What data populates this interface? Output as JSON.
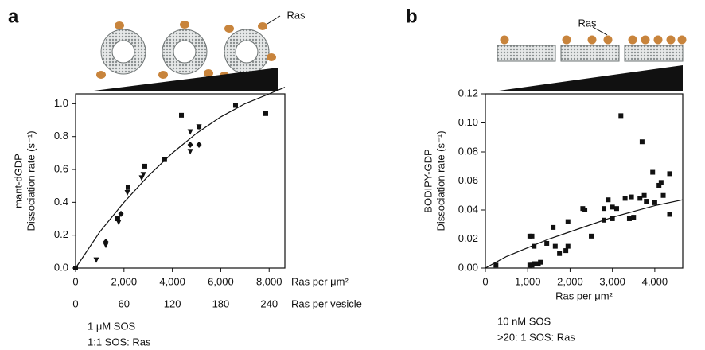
{
  "chart_data": [
    {
      "type": "scatter",
      "panel": "a",
      "annotation": "Ras",
      "ylabel": [
        "mant-dGDP",
        "Dissociation rate (s⁻¹)"
      ],
      "xlabel": "Ras per μm²",
      "x2label": "Ras per vesicle",
      "notes": [
        "1 μM SOS",
        "1:1 SOS: Ras"
      ],
      "xlim": [
        0,
        8650
      ],
      "xticks": [
        0,
        {
          "value": 2000,
          "label": "2,000"
        },
        {
          "value": 4000,
          "label": "4,000"
        },
        {
          "value": 6000,
          "label": "6,000"
        },
        {
          "value": 8000,
          "label": "8,000"
        }
      ],
      "x2lim": [
        0,
        259.5
      ],
      "x2ticks": [
        0,
        60,
        120,
        180,
        240
      ],
      "ylim": [
        0,
        1.06
      ],
      "yticks": [
        {
          "value": 0,
          "label": "0.0"
        },
        0.2,
        0.4,
        0.6,
        0.8,
        {
          "value": 1,
          "label": "1.0"
        }
      ],
      "series": [
        {
          "marker": "square",
          "color": "#111111",
          "x": [
            0,
            1740,
            2170,
            2860,
            3680,
            4375,
            5100,
            6610,
            7860
          ],
          "values": [
            0,
            0.3,
            0.49,
            0.62,
            0.66,
            0.93,
            0.86,
            0.99,
            0.94
          ]
        },
        {
          "marker": "triangle",
          "color": "#111111",
          "x": [
            855,
            1250,
            1780,
            2140,
            2730,
            2800,
            4740,
            4740,
            5100
          ],
          "values": [
            0.05,
            0.14,
            0.28,
            0.46,
            0.55,
            0.57,
            0.83,
            0.71,
            0.86
          ]
        },
        {
          "marker": "diamond",
          "color": "#111111",
          "x": [
            1250,
            1875,
            4740,
            5100
          ],
          "values": [
            0.16,
            0.33,
            0.75,
            0.75
          ]
        },
        {
          "marker": "line",
          "color": "#111111",
          "x": [
            0,
            1000,
            2000,
            3000,
            4000,
            5000,
            6000,
            7000,
            8000,
            8650
          ],
          "values": [
            0,
            0.22,
            0.4,
            0.56,
            0.7,
            0.82,
            0.92,
            1.0,
            1.06,
            1.1
          ]
        }
      ]
    },
    {
      "type": "scatter",
      "panel": "b",
      "annotation": "Ras",
      "ylabel": [
        "BODIPY-GDP",
        "Dissociation rate (s⁻¹)"
      ],
      "xlabel": "Ras per μm²",
      "notes": [
        "10 nM SOS",
        ">20: 1 SOS: Ras"
      ],
      "xlim": [
        0,
        4660
      ],
      "xticks": [
        0,
        {
          "value": 1000,
          "label": "1,000"
        },
        {
          "value": 2000,
          "label": "2,000"
        },
        {
          "value": 3000,
          "label": "3,000"
        },
        {
          "value": 4000,
          "label": "4,000"
        }
      ],
      "ylim": [
        0,
        0.12
      ],
      "yticks": [
        {
          "value": 0,
          "label": "0.00"
        },
        0.02,
        0.04,
        0.06,
        0.08,
        {
          "value": 0.1,
          "label": "0.10"
        },
        0.12
      ],
      "series": [
        {
          "marker": "square",
          "color": "#111111",
          "x": [
            250,
            1050,
            1100,
            1050,
            1100,
            1150,
            1250,
            1300,
            1150,
            1450,
            1600,
            1750,
            1650,
            1900,
            1950,
            1950,
            2300,
            2350,
            2500,
            2800,
            2800,
            2900,
            3000,
            3100,
            3000,
            3200,
            3300,
            3400,
            3450,
            3500,
            3650,
            3700,
            3750,
            3800,
            3950,
            4000,
            4100,
            4150,
            4200,
            4350,
            4350
          ],
          "values": [
            0.002,
            0.022,
            0.022,
            0.002,
            0.002,
            0.003,
            0.003,
            0.004,
            0.015,
            0.017,
            0.028,
            0.01,
            0.015,
            0.012,
            0.015,
            0.032,
            0.041,
            0.04,
            0.022,
            0.041,
            0.033,
            0.047,
            0.042,
            0.041,
            0.034,
            0.105,
            0.048,
            0.034,
            0.049,
            0.035,
            0.048,
            0.087,
            0.05,
            0.046,
            0.066,
            0.045,
            0.057,
            0.059,
            0.05,
            0.065,
            0.037
          ]
        },
        {
          "marker": "line",
          "color": "#111111",
          "x": [
            0,
            500,
            1000,
            1500,
            2000,
            2500,
            3000,
            3500,
            4000,
            4660
          ],
          "values": [
            0,
            0.008,
            0.014,
            0.02,
            0.025,
            0.03,
            0.035,
            0.039,
            0.043,
            0.047
          ]
        }
      ]
    }
  ]
}
